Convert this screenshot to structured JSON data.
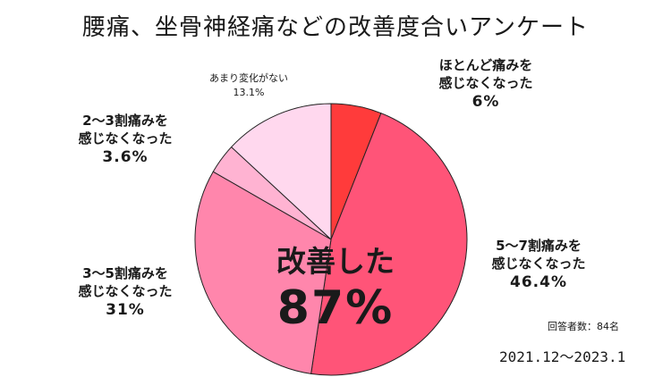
{
  "title": "腰痛、坐骨神経痛などの改善度合いアンケート",
  "chart_data": {
    "type": "pie",
    "title": "腰痛、坐骨神経痛などの改善度合いアンケート",
    "slices": [
      {
        "label": "ほとんど痛みを感じなくなった",
        "line1": "ほとんど痛みを",
        "line2": "感じなくなった",
        "value": 6,
        "display": "6%",
        "color": "#ff3b3b"
      },
      {
        "label": "5〜7割痛みを感じなくなった",
        "line1": "5〜7割痛みを",
        "line2": "感じなくなった",
        "value": 46.4,
        "display": "46.4%",
        "color": "#ff5478"
      },
      {
        "label": "3〜5割痛みを感じなくなった",
        "line1": "3〜5割痛みを",
        "line2": "感じなくなった",
        "value": 31,
        "display": "31%",
        "color": "#ff86ac"
      },
      {
        "label": "2〜3割痛みを感じなくなった",
        "line1": "2〜3割痛みを",
        "line2": "感じなくなった",
        "value": 3.6,
        "display": "3.6%",
        "color": "#ffb3d2"
      },
      {
        "label": "あまり変化がない",
        "line1": "あまり変化がない",
        "line2": "",
        "value": 13.1,
        "display": "13.1%",
        "color": "#ffd8ee"
      }
    ],
    "center_text": "改善した",
    "center_value": "87%",
    "respondents": "回答者数：84名",
    "period": "2021.12〜2023.1"
  }
}
